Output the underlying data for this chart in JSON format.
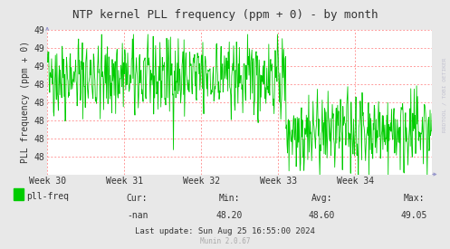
{
  "title": "NTP kernel PLL frequency (ppm + 0) - by month",
  "ylabel": "PLL frequency (ppm + 0)",
  "ylim_min": 47.8,
  "ylim_max": 49.25,
  "ytick_positions": [
    48.0,
    48.2,
    48.4,
    48.6,
    48.8,
    49.0,
    49.2,
    49.4
  ],
  "ytick_labels": [
    "48",
    "48",
    "48",
    "48",
    "48",
    "49",
    "49",
    "49"
  ],
  "xtick_positions": [
    0.0,
    0.2,
    0.4,
    0.6,
    0.8,
    1.0
  ],
  "xtick_labels": [
    "Week 30",
    "Week 31",
    "Week 32",
    "Week 33",
    "Week 34",
    ""
  ],
  "bg_color": "#e8e8e8",
  "plot_bg_color": "#ffffff",
  "line_color": "#00cc00",
  "grid_color": "#ff9999",
  "title_color": "#333333",
  "label_color": "#333333",
  "tick_color": "#333333",
  "watermark": "RRDTOOL / TOBI OETIKER",
  "footer_text": "Munin 2.0.67",
  "legend_label": "pll-freq",
  "legend_color": "#00cc00",
  "cur_label": "Cur:",
  "cur_val": "-nan",
  "min_label": "Min:",
  "min_val": "48.20",
  "avg_label": "Avg:",
  "avg_val": "48.60",
  "max_label": "Max:",
  "max_val": "49.05",
  "last_update": "Last update: Sun Aug 25 16:55:00 2024",
  "seed": 42,
  "n_points": 800
}
